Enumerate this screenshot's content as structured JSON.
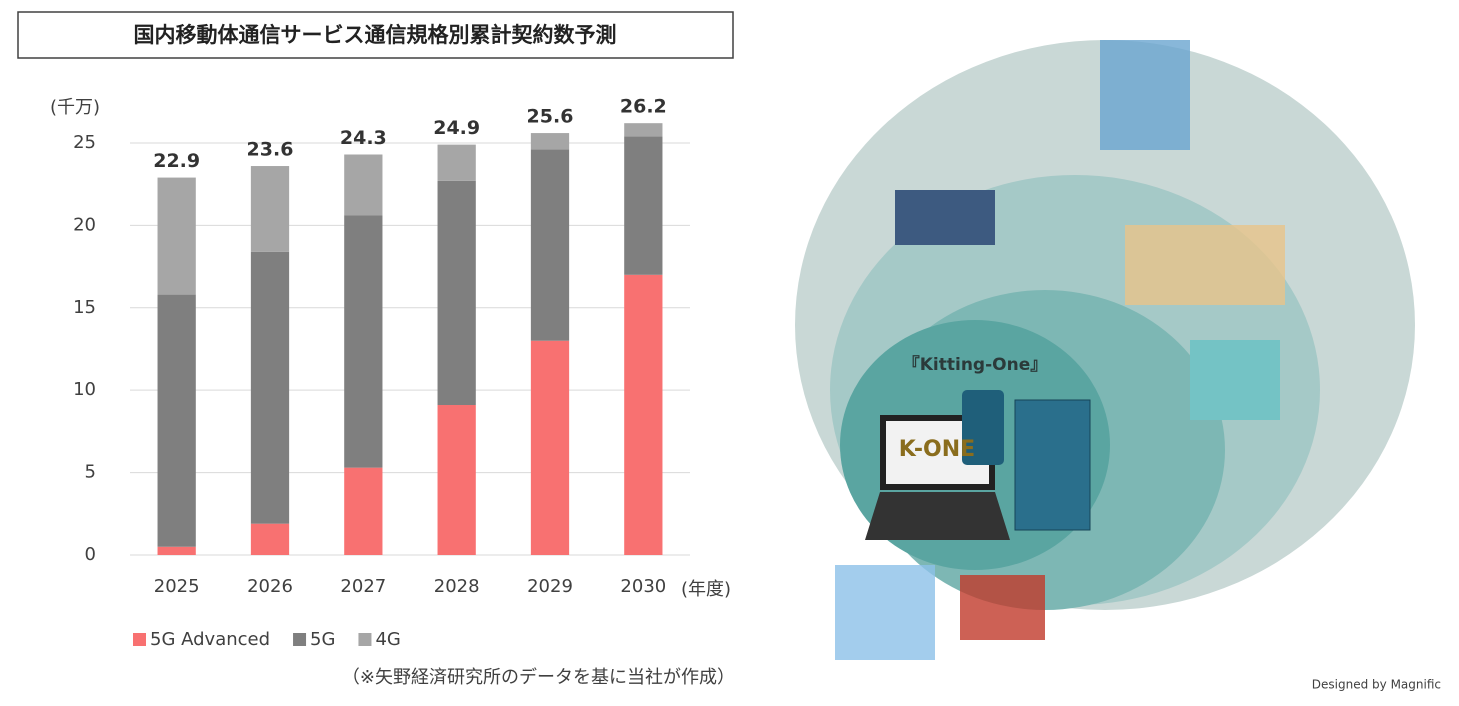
{
  "chart_data": {
    "type": "stacked-bar",
    "title": "国内移動体通信サービス通信規格別累計契約数予測",
    "y_label": "(千万)",
    "x_label": "(年度)",
    "categories": [
      "2025",
      "2026",
      "2027",
      "2028",
      "2029",
      "2030"
    ],
    "series": [
      {
        "name": "5G Advanced",
        "color": "#f87171",
        "values": [
          0.5,
          1.9,
          5.3,
          9.1,
          13.0,
          17.0
        ]
      },
      {
        "name": "5G",
        "color": "#7f7f7f",
        "values": [
          15.3,
          16.5,
          15.3,
          13.6,
          11.6,
          8.4
        ]
      },
      {
        "name": "4G",
        "color": "#a6a6a6",
        "values": [
          7.1,
          5.2,
          3.7,
          2.2,
          1.0,
          0.8
        ]
      }
    ],
    "totals": [
      22.9,
      23.6,
      24.3,
      24.9,
      25.6,
      26.2
    ],
    "ylim": [
      0,
      27
    ],
    "yticks": [
      0,
      5,
      10,
      15,
      20,
      25
    ],
    "grid": true,
    "legend": "bottom",
    "note": "（※矢野経済研究所のデータを基に当社が作成）"
  },
  "illustration": {
    "product": "『Kitting-One』",
    "logo": "K-ONE",
    "credit": "Designed by Magnific"
  }
}
